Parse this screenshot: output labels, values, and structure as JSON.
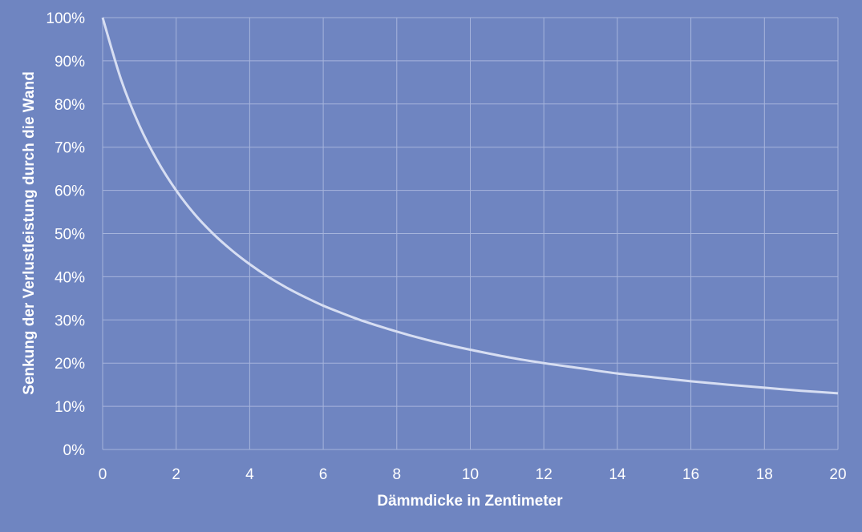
{
  "chart_data": {
    "type": "line",
    "title": "",
    "xlabel": "Dämmdicke in Zentimeter",
    "ylabel": "Senkung der Verlustleistung durch die Wand",
    "xlim": [
      0,
      20
    ],
    "ylim": [
      0,
      100
    ],
    "x_ticks": [
      0,
      2,
      4,
      6,
      8,
      10,
      12,
      14,
      16,
      18,
      20
    ],
    "x_tick_labels": [
      "0",
      "2",
      "4",
      "6",
      "8",
      "10",
      "12",
      "14",
      "16",
      "18",
      "20"
    ],
    "y_ticks": [
      0,
      10,
      20,
      30,
      40,
      50,
      60,
      70,
      80,
      90,
      100
    ],
    "y_tick_labels": [
      "0%",
      "10%",
      "20%",
      "30%",
      "40%",
      "50%",
      "60%",
      "70%",
      "80%",
      "90%",
      "100%"
    ],
    "grid": true,
    "series": [
      {
        "x": [
          0,
          0.5,
          1,
          1.5,
          2,
          2.5,
          3,
          3.5,
          4,
          4.5,
          5,
          5.5,
          6,
          6.5,
          7,
          7.5,
          8,
          8.5,
          9,
          9.5,
          10,
          11,
          12,
          13,
          14,
          15,
          16,
          17,
          18,
          19,
          20
        ],
        "values": [
          100,
          85.7,
          75,
          66.7,
          60,
          54.5,
          50,
          46.2,
          42.9,
          40,
          37.5,
          35.3,
          33.3,
          31.6,
          30,
          28.6,
          27.3,
          26.1,
          25,
          24,
          23.1,
          21.4,
          20,
          18.8,
          17.6,
          16.7,
          15.8,
          15,
          14.3,
          13.6,
          13
        ]
      }
    ],
    "colors": {
      "background": "#6f85c1",
      "grid": "#a6b4dc",
      "line": "#d7def2",
      "text": "#ffffff"
    }
  }
}
